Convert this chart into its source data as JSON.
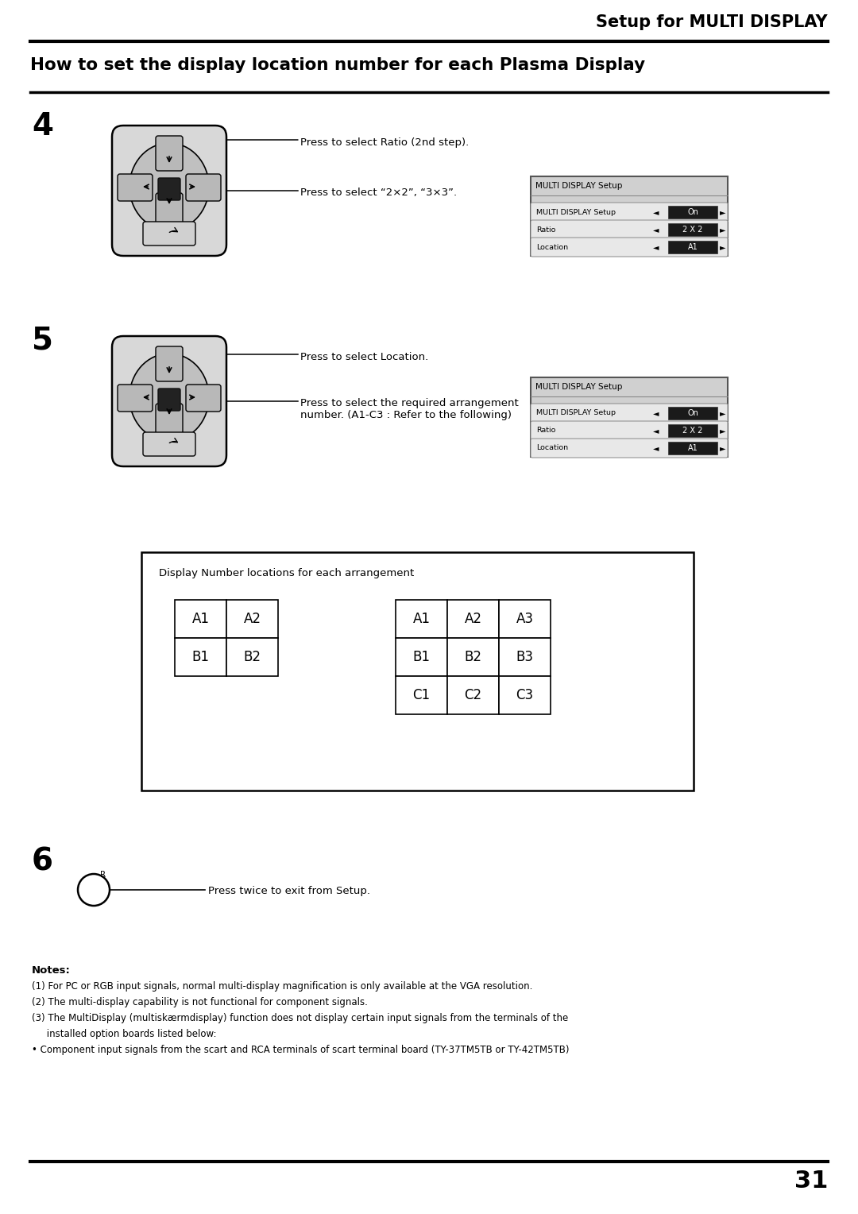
{
  "title_header": "Setup for MULTI DISPLAY",
  "section_title": "How to set the display location number for each Plasma Display",
  "page_number": "31",
  "bg_color": "#ffffff",
  "step4_label": "4",
  "step5_label": "5",
  "step6_label": "6",
  "step4_text1": "Press to select Ratio (2nd step).",
  "step4_text2": "Press to select “2×2”, “3×3”.",
  "step5_text1": "Press to select Location.",
  "step5_text2": "Press to select the required arrangement\nnumber. (A1-C3 : Refer to the following)",
  "step6_text": "Press twice to exit from Setup.",
  "menu_title": "MULTI DISPLAY Setup",
  "menu_row1_label": "MULTI DISPLAY Setup",
  "menu_row1_value": "On",
  "menu_row2_label": "Ratio",
  "menu_row2_value": "2 X 2",
  "menu_row3_label": "Location",
  "menu_row3_value": "A1",
  "display_box_title": "Display Number locations for each arrangement",
  "grid_2x2": [
    [
      "A1",
      "A2"
    ],
    [
      "B1",
      "B2"
    ]
  ],
  "grid_3x3": [
    [
      "A1",
      "A2",
      "A3"
    ],
    [
      "B1",
      "B2",
      "B3"
    ],
    [
      "C1",
      "C2",
      "C3"
    ]
  ],
  "notes_title": "Notes:",
  "note1": "(1) For PC or RGB input signals, normal multi-display magnification is only available at the VGA resolution.",
  "note2": "(2) The multi-display capability is not functional for component signals.",
  "note3": "(3) The MultiDisplay (multiskærmdisplay) function does not display certain input signals from the terminals of the",
  "note3b": "     installed option boards listed below:",
  "note4": "• Component input signals from the scart and RCA terminals of scart terminal board (TY-37TM5TB or TY-42TM5TB)"
}
